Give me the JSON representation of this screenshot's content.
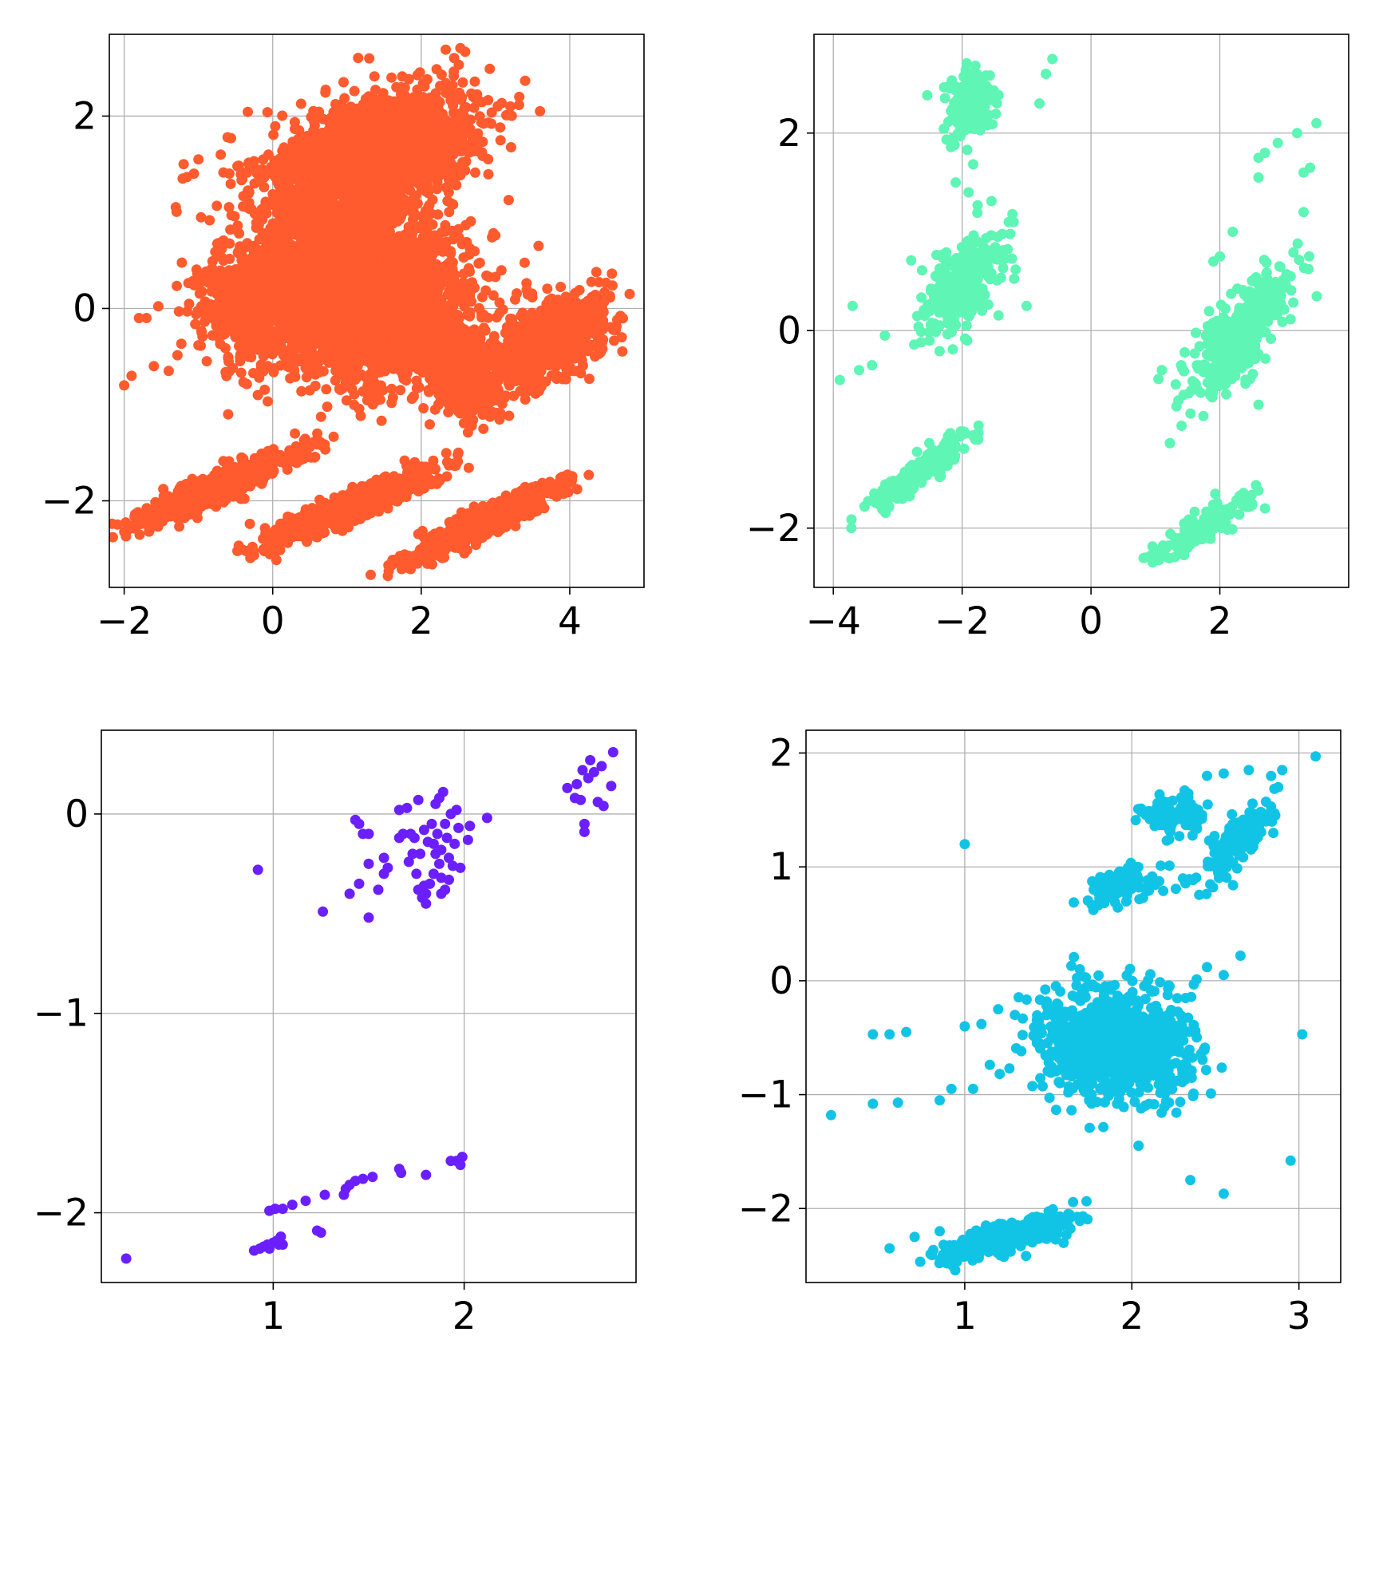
{
  "figure": {
    "layout": "2x2 grid of scatter plots",
    "grid": true,
    "marker": "filled circle"
  },
  "chart_data": [
    {
      "type": "scatter",
      "title": "",
      "xlabel": "",
      "ylabel": "",
      "color": "#ff5b2e",
      "xlim": [
        -2.2,
        5.0
      ],
      "ylim": [
        -2.9,
        2.85
      ],
      "xticks": [
        -2,
        0,
        2,
        4
      ],
      "xtick_labels": [
        "−2",
        "0",
        "2",
        "4"
      ],
      "yticks": [
        -2,
        0,
        2
      ],
      "ytick_labels": [
        "−2",
        "0",
        "2"
      ],
      "grid": true,
      "point_density": "very dense (thousands of overlapping points)",
      "clusters": [
        {
          "shape": "ellipse",
          "center": [
            1.3,
            0.1
          ],
          "spread": [
            1.2,
            0.75
          ],
          "angle_deg": -3,
          "n": 2600
        },
        {
          "shape": "ellipse",
          "center": [
            1.4,
            1.65
          ],
          "spread": [
            1.3,
            0.5
          ],
          "angle_deg": 12,
          "n": 1600
        },
        {
          "shape": "ellipse",
          "center": [
            -0.2,
            0.05
          ],
          "spread": [
            0.8,
            0.55
          ],
          "angle_deg": 0,
          "n": 700
        },
        {
          "shape": "ellipse",
          "center": [
            3.7,
            -0.35
          ],
          "spread": [
            0.75,
            0.32
          ],
          "angle_deg": 22,
          "n": 900
        },
        {
          "shape": "ellipse",
          "center": [
            2.6,
            -0.7
          ],
          "spread": [
            0.4,
            0.4
          ],
          "angle_deg": 40,
          "n": 500
        },
        {
          "shape": "ellipse",
          "center": [
            -0.7,
            -1.85
          ],
          "spread": [
            1.05,
            0.13
          ],
          "angle_deg": 18,
          "n": 700
        },
        {
          "shape": "ellipse",
          "center": [
            1.1,
            -2.05
          ],
          "spread": [
            1.05,
            0.13
          ],
          "angle_deg": 18,
          "n": 700
        },
        {
          "shape": "ellipse",
          "center": [
            2.8,
            -2.25
          ],
          "spread": [
            1.0,
            0.13
          ],
          "angle_deg": 20,
          "n": 700
        },
        {
          "shape": "ellipse",
          "center": [
            0.9,
            1.0
          ],
          "spread": [
            1.3,
            0.5
          ],
          "angle_deg": 0,
          "n": 350
        }
      ],
      "points": [
        [
          -2.0,
          -0.8
        ],
        [
          -1.9,
          -0.7
        ],
        [
          -1.8,
          -0.1
        ],
        [
          -1.7,
          -0.1
        ],
        [
          -1.2,
          1.5
        ],
        [
          -1.0,
          1.55
        ],
        [
          -0.7,
          1.6
        ],
        [
          -1.95,
          -2.3
        ],
        [
          -1.6,
          -0.6
        ],
        [
          -1.4,
          -0.65
        ],
        [
          3.6,
          2.05
        ],
        [
          3.2,
          2.1
        ],
        [
          1.3,
          2.6
        ],
        [
          1.6,
          2.4
        ],
        [
          4.7,
          -0.3
        ],
        [
          4.1,
          -0.65
        ],
        [
          3.9,
          -1.75
        ],
        [
          3.95,
          -1.9
        ],
        [
          -0.6,
          -1.1
        ],
        [
          2.5,
          -1.5
        ],
        [
          2.2,
          -1.8
        ],
        [
          0.6,
          -1.3
        ],
        [
          0.3,
          -1.3
        ],
        [
          -0.2,
          -0.9
        ],
        [
          2.7,
          2.2
        ]
      ]
    },
    {
      "type": "scatter",
      "title": "",
      "xlabel": "",
      "ylabel": "",
      "color": "#5ef5b5",
      "xlim": [
        -4.3,
        4.0
      ],
      "ylim": [
        -2.6,
        3.0
      ],
      "xticks": [
        -4,
        -2,
        0,
        2
      ],
      "xtick_labels": [
        "−4",
        "−2",
        "0",
        "2"
      ],
      "yticks": [
        -2,
        0,
        2
      ],
      "ytick_labels": [
        "−2",
        "0",
        "2"
      ],
      "grid": true,
      "clusters": [
        {
          "shape": "ellipse",
          "center": [
            -1.9,
            2.25
          ],
          "spread": [
            0.32,
            0.3
          ],
          "angle_deg": 30,
          "n": 180
        },
        {
          "shape": "ellipse",
          "center": [
            -2.0,
            0.5
          ],
          "spread": [
            0.65,
            0.35
          ],
          "angle_deg": 35,
          "n": 320
        },
        {
          "shape": "ellipse",
          "center": [
            -2.7,
            -1.45
          ],
          "spread": [
            0.85,
            0.12
          ],
          "angle_deg": 25,
          "n": 180
        },
        {
          "shape": "ellipse",
          "center": [
            2.3,
            -0.05
          ],
          "spread": [
            0.85,
            0.3
          ],
          "angle_deg": 38,
          "n": 380
        },
        {
          "shape": "ellipse",
          "center": [
            1.7,
            -2.0
          ],
          "spread": [
            0.75,
            0.12
          ],
          "angle_deg": 22,
          "n": 160
        }
      ],
      "points": [
        [
          -3.9,
          -0.5
        ],
        [
          -3.7,
          0.25
        ],
        [
          -3.6,
          -0.4
        ],
        [
          -3.4,
          -0.35
        ],
        [
          -3.2,
          -0.05
        ],
        [
          -2.1,
          1.5
        ],
        [
          -1.9,
          1.4
        ],
        [
          -0.8,
          2.3
        ],
        [
          -0.6,
          2.75
        ],
        [
          -0.7,
          2.6
        ],
        [
          -1.2,
          1.1
        ],
        [
          -1.0,
          0.25
        ],
        [
          3.2,
          2.0
        ],
        [
          3.5,
          2.1
        ],
        [
          3.3,
          1.6
        ],
        [
          3.4,
          1.65
        ],
        [
          3.3,
          1.2
        ],
        [
          2.6,
          1.75
        ],
        [
          2.9,
          1.9
        ],
        [
          2.7,
          1.8
        ],
        [
          2.6,
          1.55
        ],
        [
          2.2,
          1.0
        ],
        [
          1.9,
          0.7
        ],
        [
          2.0,
          0.75
        ],
        [
          3.1,
          0.55
        ],
        [
          1.1,
          -0.4
        ],
        [
          1.4,
          -0.35
        ],
        [
          2.6,
          -0.75
        ],
        [
          2.7,
          -1.8
        ],
        [
          2.5,
          -1.75
        ]
      ]
    },
    {
      "type": "scatter",
      "title": "",
      "xlabel": "",
      "ylabel": "",
      "color": "#6b1fff",
      "xlim": [
        0.1,
        2.9
      ],
      "ylim": [
        -2.35,
        0.42
      ],
      "xticks": [
        1,
        2
      ],
      "xtick_labels": [
        "1",
        "2"
      ],
      "yticks": [
        -2,
        -1,
        0
      ],
      "ytick_labels": [
        "−2",
        "−1",
        "0"
      ],
      "grid": true,
      "points": [
        [
          0.23,
          -2.23
        ],
        [
          0.92,
          -0.28
        ],
        [
          1.26,
          -0.49
        ],
        [
          1.5,
          -0.52
        ],
        [
          1.4,
          -0.4
        ],
        [
          1.45,
          -0.35
        ],
        [
          1.5,
          -0.25
        ],
        [
          1.55,
          -0.38
        ],
        [
          1.58,
          -0.3
        ],
        [
          1.6,
          -0.27
        ],
        [
          1.58,
          -0.22
        ],
        [
          1.45,
          -0.05
        ],
        [
          1.47,
          -0.1
        ],
        [
          1.43,
          -0.03
        ],
        [
          1.5,
          -0.1
        ],
        [
          1.66,
          0.02
        ],
        [
          1.7,
          0.03
        ],
        [
          1.68,
          -0.1
        ],
        [
          1.72,
          -0.1
        ],
        [
          1.73,
          -0.2
        ],
        [
          1.75,
          -0.3
        ],
        [
          1.76,
          -0.38
        ],
        [
          1.78,
          -0.42
        ],
        [
          1.79,
          -0.36
        ],
        [
          1.8,
          -0.4
        ],
        [
          1.8,
          -0.45
        ],
        [
          1.82,
          -0.35
        ],
        [
          1.83,
          -0.05
        ],
        [
          1.84,
          -0.15
        ],
        [
          1.85,
          0.05
        ],
        [
          1.85,
          -0.2
        ],
        [
          1.86,
          -0.1
        ],
        [
          1.87,
          0.08
        ],
        [
          1.87,
          -0.25
        ],
        [
          1.88,
          -0.18
        ],
        [
          1.88,
          -0.32
        ],
        [
          1.89,
          0.11
        ],
        [
          1.9,
          -0.05
        ],
        [
          1.9,
          -0.38
        ],
        [
          1.91,
          -0.12
        ],
        [
          1.92,
          -0.22
        ],
        [
          1.93,
          0.0
        ],
        [
          1.94,
          -0.26
        ],
        [
          1.95,
          -0.15
        ],
        [
          1.96,
          0.02
        ],
        [
          1.97,
          -0.07
        ],
        [
          1.98,
          -0.27
        ],
        [
          2.02,
          -0.13
        ],
        [
          2.03,
          -0.06
        ],
        [
          2.12,
          -0.02
        ],
        [
          1.74,
          -0.12
        ],
        [
          1.71,
          -0.24
        ],
        [
          1.77,
          -0.2
        ],
        [
          1.81,
          -0.14
        ],
        [
          1.79,
          -0.08
        ],
        [
          1.92,
          -0.33
        ],
        [
          1.88,
          -0.4
        ],
        [
          1.84,
          -0.3
        ],
        [
          1.76,
          0.07
        ],
        [
          1.66,
          -0.12
        ],
        [
          2.54,
          0.13
        ],
        [
          2.58,
          0.08
        ],
        [
          2.59,
          0.15
        ],
        [
          2.61,
          0.07
        ],
        [
          2.62,
          0.22
        ],
        [
          2.63,
          -0.05
        ],
        [
          2.63,
          -0.09
        ],
        [
          2.65,
          0.18
        ],
        [
          2.66,
          0.27
        ],
        [
          2.68,
          0.21
        ],
        [
          2.7,
          0.06
        ],
        [
          2.72,
          0.24
        ],
        [
          2.73,
          0.04
        ],
        [
          2.77,
          0.14
        ],
        [
          2.78,
          0.31
        ],
        [
          0.9,
          -2.19
        ],
        [
          0.93,
          -2.18
        ],
        [
          0.95,
          -2.17
        ],
        [
          0.97,
          -2.16
        ],
        [
          0.98,
          -2.18
        ],
        [
          1.0,
          -2.15
        ],
        [
          1.02,
          -2.14
        ],
        [
          1.03,
          -2.16
        ],
        [
          1.04,
          -2.12
        ],
        [
          1.05,
          -2.16
        ],
        [
          0.98,
          -1.99
        ],
        [
          1.01,
          -1.98
        ],
        [
          1.05,
          -1.98
        ],
        [
          1.1,
          -1.96
        ],
        [
          1.17,
          -1.94
        ],
        [
          1.23,
          -2.09
        ],
        [
          1.25,
          -2.1
        ],
        [
          1.27,
          -1.91
        ],
        [
          1.37,
          -1.91
        ],
        [
          1.38,
          -1.88
        ],
        [
          1.4,
          -1.86
        ],
        [
          1.43,
          -1.84
        ],
        [
          1.47,
          -1.83
        ],
        [
          1.52,
          -1.82
        ],
        [
          1.66,
          -1.78
        ],
        [
          1.67,
          -1.8
        ],
        [
          1.8,
          -1.81
        ],
        [
          1.93,
          -1.74
        ],
        [
          1.96,
          -1.74
        ],
        [
          1.98,
          -1.76
        ],
        [
          1.99,
          -1.72
        ]
      ]
    },
    {
      "type": "scatter",
      "title": "",
      "xlabel": "",
      "ylabel": "",
      "color": "#11c4e6",
      "xlim": [
        0.05,
        3.25
      ],
      "ylim": [
        -2.65,
        2.2
      ],
      "xticks": [
        1,
        2,
        3
      ],
      "xtick_labels": [
        "1",
        "2",
        "3"
      ],
      "yticks": [
        -2,
        -1,
        0,
        1,
        2
      ],
      "ytick_labels": [
        "−2",
        "−1",
        "0",
        "1",
        "2"
      ],
      "grid": true,
      "clusters": [
        {
          "shape": "ellipse",
          "center": [
            1.9,
            -0.55
          ],
          "spread": [
            0.4,
            0.45
          ],
          "angle_deg": 38,
          "n": 900
        },
        {
          "shape": "ellipse",
          "center": [
            1.25,
            -2.25
          ],
          "spread": [
            0.38,
            0.1
          ],
          "angle_deg": 22,
          "n": 420
        },
        {
          "shape": "ellipse",
          "center": [
            2.25,
            1.45
          ],
          "spread": [
            0.16,
            0.14
          ],
          "angle_deg": 0,
          "n": 120
        },
        {
          "shape": "ellipse",
          "center": [
            2.65,
            1.25
          ],
          "spread": [
            0.4,
            0.12
          ],
          "angle_deg": 60,
          "n": 160
        },
        {
          "shape": "ellipse",
          "center": [
            1.95,
            0.85
          ],
          "spread": [
            0.25,
            0.14
          ],
          "angle_deg": 25,
          "n": 100
        }
      ],
      "points": [
        [
          0.2,
          -1.18
        ],
        [
          0.45,
          -0.47
        ],
        [
          0.55,
          -0.47
        ],
        [
          0.65,
          -0.45
        ],
        [
          0.45,
          -1.08
        ],
        [
          0.6,
          -1.07
        ],
        [
          0.85,
          -1.05
        ],
        [
          0.92,
          -0.95
        ],
        [
          1.0,
          -0.4
        ],
        [
          1.1,
          -0.38
        ],
        [
          1.05,
          -0.95
        ],
        [
          1.2,
          -0.25
        ],
        [
          1.3,
          -0.3
        ],
        [
          0.55,
          -2.35
        ],
        [
          0.7,
          -2.25
        ],
        [
          0.85,
          -2.2
        ],
        [
          2.35,
          -1.75
        ],
        [
          2.55,
          -1.87
        ],
        [
          2.95,
          -1.58
        ],
        [
          3.02,
          -0.47
        ],
        [
          3.1,
          1.97
        ],
        [
          2.9,
          1.85
        ],
        [
          2.7,
          1.85
        ],
        [
          2.55,
          1.82
        ],
        [
          2.45,
          1.8
        ],
        [
          2.65,
          0.22
        ],
        [
          2.45,
          0.12
        ],
        [
          2.55,
          0.05
        ],
        [
          2.2,
          -0.75
        ],
        [
          1.0,
          1.2
        ]
      ]
    }
  ]
}
